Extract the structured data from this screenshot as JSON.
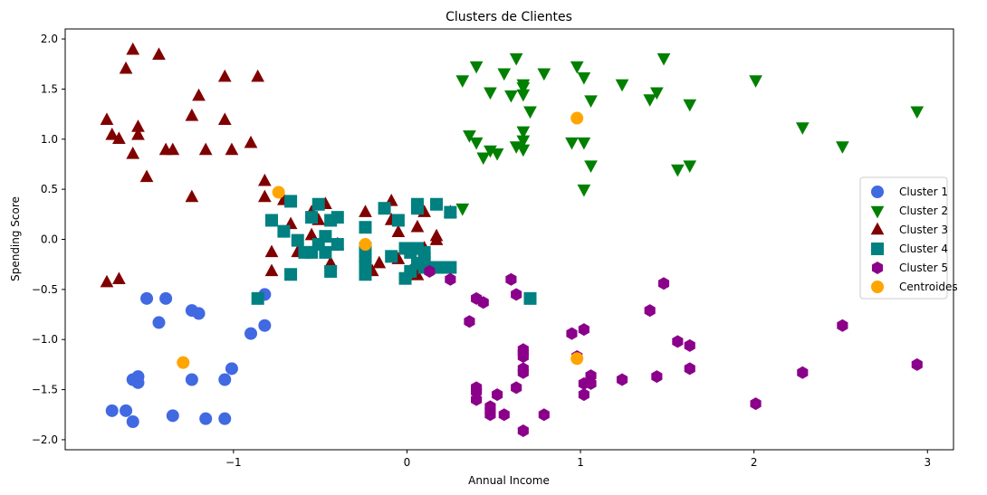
{
  "chart_data": {
    "type": "scatter",
    "title": "Clusters de Clientes",
    "xlabel": "Annual Income",
    "ylabel": "Spending Score",
    "xlim": [
      -1.97,
      3.15
    ],
    "ylim": [
      -2.1,
      2.1
    ],
    "xticks": [
      -1,
      0,
      1,
      2,
      3
    ],
    "xtick_labels": [
      "−1",
      "0",
      "1",
      "2",
      "3"
    ],
    "yticks": [
      -2.0,
      -1.5,
      -1.0,
      -0.5,
      0.0,
      0.5,
      1.0,
      1.5,
      2.0
    ],
    "ytick_labels": [
      "−2.0",
      "−1.5",
      "−1.0",
      "−0.5",
      "0.0",
      "0.5",
      "1.0",
      "1.5",
      "2.0"
    ],
    "grid": false,
    "legend_position": "center-right",
    "series": [
      {
        "name": "Cluster 1",
        "marker": "circle",
        "color": "#4169E1",
        "points": [
          [
            -1.7,
            -1.71
          ],
          [
            -1.62,
            -1.71
          ],
          [
            -1.58,
            -1.82
          ],
          [
            -1.58,
            -1.4
          ],
          [
            -1.55,
            -1.37
          ],
          [
            -1.55,
            -1.43
          ],
          [
            -1.5,
            -0.59
          ],
          [
            -1.43,
            -0.83
          ],
          [
            -1.39,
            -0.59
          ],
          [
            -1.35,
            -1.76
          ],
          [
            -1.24,
            -1.4
          ],
          [
            -1.24,
            -0.71
          ],
          [
            -1.2,
            -0.74
          ],
          [
            -1.16,
            -1.79
          ],
          [
            -1.05,
            -1.79
          ],
          [
            -1.05,
            -1.4
          ],
          [
            -1.01,
            -1.29
          ],
          [
            -0.9,
            -0.94
          ],
          [
            -0.82,
            -0.55
          ],
          [
            -0.82,
            -0.86
          ]
        ]
      },
      {
        "name": "Cluster 2",
        "marker": "triangle-down",
        "color": "#008000",
        "points": [
          [
            0.32,
            1.59
          ],
          [
            0.32,
            0.31
          ],
          [
            0.36,
            1.04
          ],
          [
            0.4,
            0.97
          ],
          [
            0.4,
            1.73
          ],
          [
            0.44,
            0.82
          ],
          [
            0.48,
            1.47
          ],
          [
            0.48,
            0.89
          ],
          [
            0.52,
            0.86
          ],
          [
            0.56,
            1.66
          ],
          [
            0.6,
            1.44
          ],
          [
            0.63,
            0.93
          ],
          [
            0.63,
            1.81
          ],
          [
            0.67,
            1.52
          ],
          [
            0.67,
            1.55
          ],
          [
            0.67,
            1.45
          ],
          [
            0.67,
            1.08
          ],
          [
            0.67,
            0.99
          ],
          [
            0.67,
            0.9
          ],
          [
            0.71,
            1.28
          ],
          [
            0.79,
            1.66
          ],
          [
            0.95,
            0.97
          ],
          [
            0.98,
            1.73
          ],
          [
            1.02,
            0.97
          ],
          [
            1.02,
            0.5
          ],
          [
            1.02,
            1.62
          ],
          [
            1.06,
            1.39
          ],
          [
            1.06,
            0.74
          ],
          [
            1.24,
            1.55
          ],
          [
            1.4,
            1.4
          ],
          [
            1.44,
            1.47
          ],
          [
            1.48,
            1.81
          ],
          [
            1.56,
            0.7
          ],
          [
            1.63,
            0.74
          ],
          [
            1.63,
            1.35
          ],
          [
            2.01,
            1.59
          ],
          [
            2.28,
            1.12
          ],
          [
            2.51,
            0.93
          ],
          [
            2.94,
            1.28
          ]
        ]
      },
      {
        "name": "Cluster 3",
        "marker": "triangle-up",
        "color": "#800000",
        "points": [
          [
            -1.73,
            1.19
          ],
          [
            -1.73,
            -0.43
          ],
          [
            -1.7,
            1.04
          ],
          [
            -1.66,
            1.0
          ],
          [
            -1.66,
            -0.4
          ],
          [
            -1.62,
            1.7
          ],
          [
            -1.58,
            0.85
          ],
          [
            -1.58,
            1.89
          ],
          [
            -1.55,
            1.04
          ],
          [
            -1.55,
            1.12
          ],
          [
            -1.5,
            0.62
          ],
          [
            -1.43,
            1.84
          ],
          [
            -1.39,
            0.89
          ],
          [
            -1.35,
            0.89
          ],
          [
            -1.24,
            1.23
          ],
          [
            -1.24,
            0.42
          ],
          [
            -1.2,
            1.43
          ],
          [
            -1.16,
            0.89
          ],
          [
            -1.05,
            1.62
          ],
          [
            -1.05,
            1.19
          ],
          [
            -1.01,
            0.89
          ],
          [
            -0.9,
            0.96
          ],
          [
            -0.86,
            1.62
          ],
          [
            -0.82,
            0.58
          ],
          [
            -0.82,
            0.42
          ],
          [
            -0.78,
            -0.13
          ],
          [
            -0.78,
            -0.32
          ],
          [
            -0.71,
            0.39
          ],
          [
            -0.67,
            0.15
          ],
          [
            -0.63,
            -0.13
          ],
          [
            -0.55,
            0.04
          ],
          [
            -0.55,
            0.27
          ],
          [
            -0.51,
            0.19
          ],
          [
            -0.47,
            0.35
          ],
          [
            -0.44,
            -0.24
          ],
          [
            -0.4,
            -0.05
          ],
          [
            -0.24,
            0.27
          ],
          [
            -0.24,
            -0.17
          ],
          [
            -0.2,
            -0.32
          ],
          [
            -0.16,
            -0.24
          ],
          [
            -0.09,
            0.38
          ],
          [
            -0.09,
            0.19
          ],
          [
            -0.05,
            -0.2
          ],
          [
            -0.05,
            0.07
          ],
          [
            0.02,
            -0.32
          ],
          [
            0.06,
            0.12
          ],
          [
            0.06,
            -0.36
          ],
          [
            0.1,
            0.27
          ],
          [
            0.1,
            -0.09
          ],
          [
            0.13,
            -0.28
          ],
          [
            0.17,
            0.03
          ],
          [
            0.17,
            -0.01
          ],
          [
            0.25,
            0.27
          ]
        ]
      },
      {
        "name": "Cluster 4",
        "marker": "square",
        "color": "#008080",
        "points": [
          [
            -0.86,
            -0.59
          ],
          [
            -0.78,
            0.19
          ],
          [
            -0.71,
            0.08
          ],
          [
            -0.67,
            -0.35
          ],
          [
            -0.67,
            0.38
          ],
          [
            -0.63,
            -0.01
          ],
          [
            -0.59,
            -0.13
          ],
          [
            -0.55,
            -0.13
          ],
          [
            -0.55,
            0.22
          ],
          [
            -0.51,
            -0.05
          ],
          [
            -0.51,
            0.35
          ],
          [
            -0.47,
            0.03
          ],
          [
            -0.47,
            -0.13
          ],
          [
            -0.44,
            -0.32
          ],
          [
            -0.44,
            0.19
          ],
          [
            -0.4,
            -0.05
          ],
          [
            -0.4,
            0.22
          ],
          [
            -0.24,
            0.12
          ],
          [
            -0.24,
            -0.09
          ],
          [
            -0.24,
            -0.13
          ],
          [
            -0.24,
            -0.2
          ],
          [
            -0.24,
            -0.28
          ],
          [
            -0.24,
            -0.35
          ],
          [
            -0.13,
            0.31
          ],
          [
            -0.09,
            -0.17
          ],
          [
            -0.05,
            0.19
          ],
          [
            -0.01,
            -0.39
          ],
          [
            -0.01,
            -0.09
          ],
          [
            0.02,
            -0.13
          ],
          [
            0.02,
            -0.32
          ],
          [
            0.06,
            0.31
          ],
          [
            0.06,
            -0.09
          ],
          [
            0.06,
            -0.24
          ],
          [
            0.06,
            0.35
          ],
          [
            0.1,
            -0.28
          ],
          [
            0.1,
            -0.2
          ],
          [
            0.1,
            -0.13
          ],
          [
            0.1,
            -0.24
          ],
          [
            0.17,
            0.35
          ],
          [
            0.17,
            -0.28
          ],
          [
            0.21,
            -0.28
          ],
          [
            0.25,
            -0.28
          ],
          [
            0.25,
            0.27
          ],
          [
            0.71,
            -0.59
          ]
        ]
      },
      {
        "name": "Cluster 5",
        "marker": "hexagon",
        "color": "#8B008B",
        "points": [
          [
            0.13,
            -0.32
          ],
          [
            0.25,
            -0.4
          ],
          [
            0.36,
            -0.82
          ],
          [
            0.4,
            -0.59
          ],
          [
            0.4,
            -1.48
          ],
          [
            0.4,
            -1.52
          ],
          [
            0.4,
            -1.6
          ],
          [
            0.44,
            -0.63
          ],
          [
            0.48,
            -1.67
          ],
          [
            0.48,
            -1.75
          ],
          [
            0.48,
            -1.71
          ],
          [
            0.52,
            -1.55
          ],
          [
            0.56,
            -1.75
          ],
          [
            0.6,
            -0.4
          ],
          [
            0.63,
            -1.48
          ],
          [
            0.63,
            -0.55
          ],
          [
            0.67,
            -1.91
          ],
          [
            0.67,
            -1.1
          ],
          [
            0.67,
            -1.13
          ],
          [
            0.67,
            -1.17
          ],
          [
            0.67,
            -1.33
          ],
          [
            0.67,
            -1.29
          ],
          [
            0.79,
            -1.75
          ],
          [
            0.95,
            -0.94
          ],
          [
            0.98,
            -1.17
          ],
          [
            1.02,
            -1.55
          ],
          [
            1.02,
            -0.9
          ],
          [
            1.02,
            -1.44
          ],
          [
            1.06,
            -1.36
          ],
          [
            1.06,
            -1.44
          ],
          [
            1.24,
            -1.4
          ],
          [
            1.4,
            -0.71
          ],
          [
            1.44,
            -1.37
          ],
          [
            1.48,
            -0.44
          ],
          [
            1.56,
            -1.02
          ],
          [
            1.63,
            -1.29
          ],
          [
            1.63,
            -1.06
          ],
          [
            2.01,
            -1.64
          ],
          [
            2.28,
            -1.33
          ],
          [
            2.51,
            -0.86
          ],
          [
            2.94,
            -1.25
          ]
        ]
      },
      {
        "name": "Centroides",
        "marker": "circle",
        "color": "#FFA500",
        "points": [
          [
            -1.29,
            -1.23
          ],
          [
            0.98,
            1.21
          ],
          [
            -0.74,
            0.47
          ],
          [
            -0.24,
            -0.05
          ],
          [
            0.98,
            -1.19
          ]
        ]
      }
    ]
  }
}
